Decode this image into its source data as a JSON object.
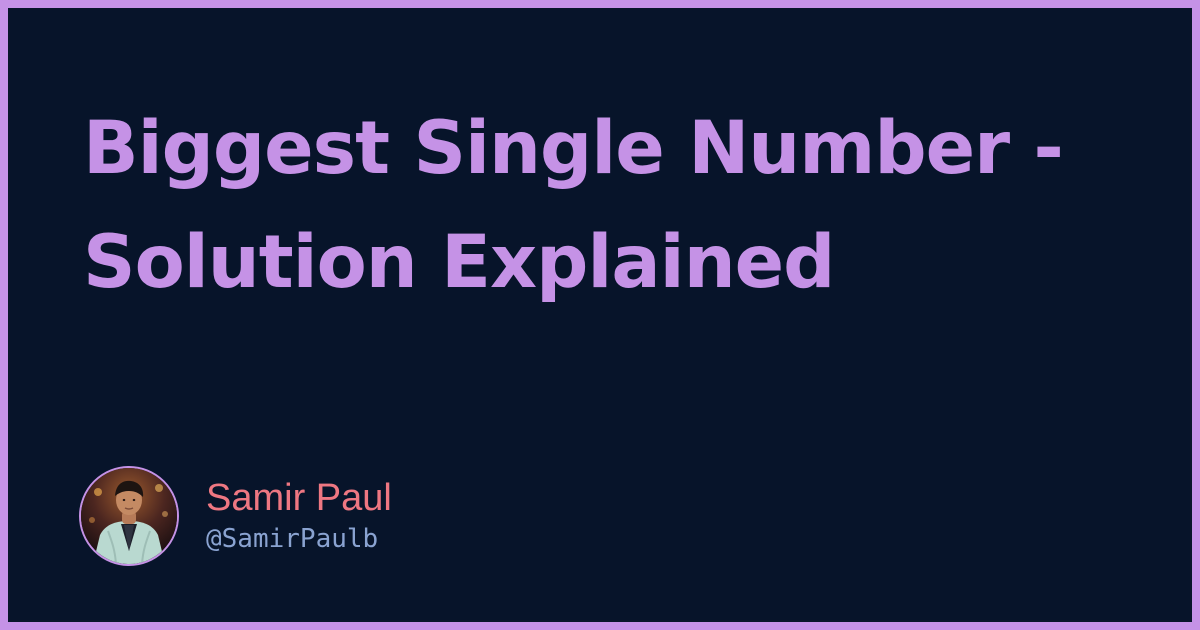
{
  "title": "Biggest Single Number - Solution Explained",
  "author": {
    "name": "Samir Paul",
    "handle": "@SamirPaulb"
  },
  "colors": {
    "background": "#07142a",
    "accent": "#c592e6",
    "name": "#ee7782",
    "handle": "#8aa3d1"
  },
  "icons": {
    "avatar": "person-photo"
  }
}
